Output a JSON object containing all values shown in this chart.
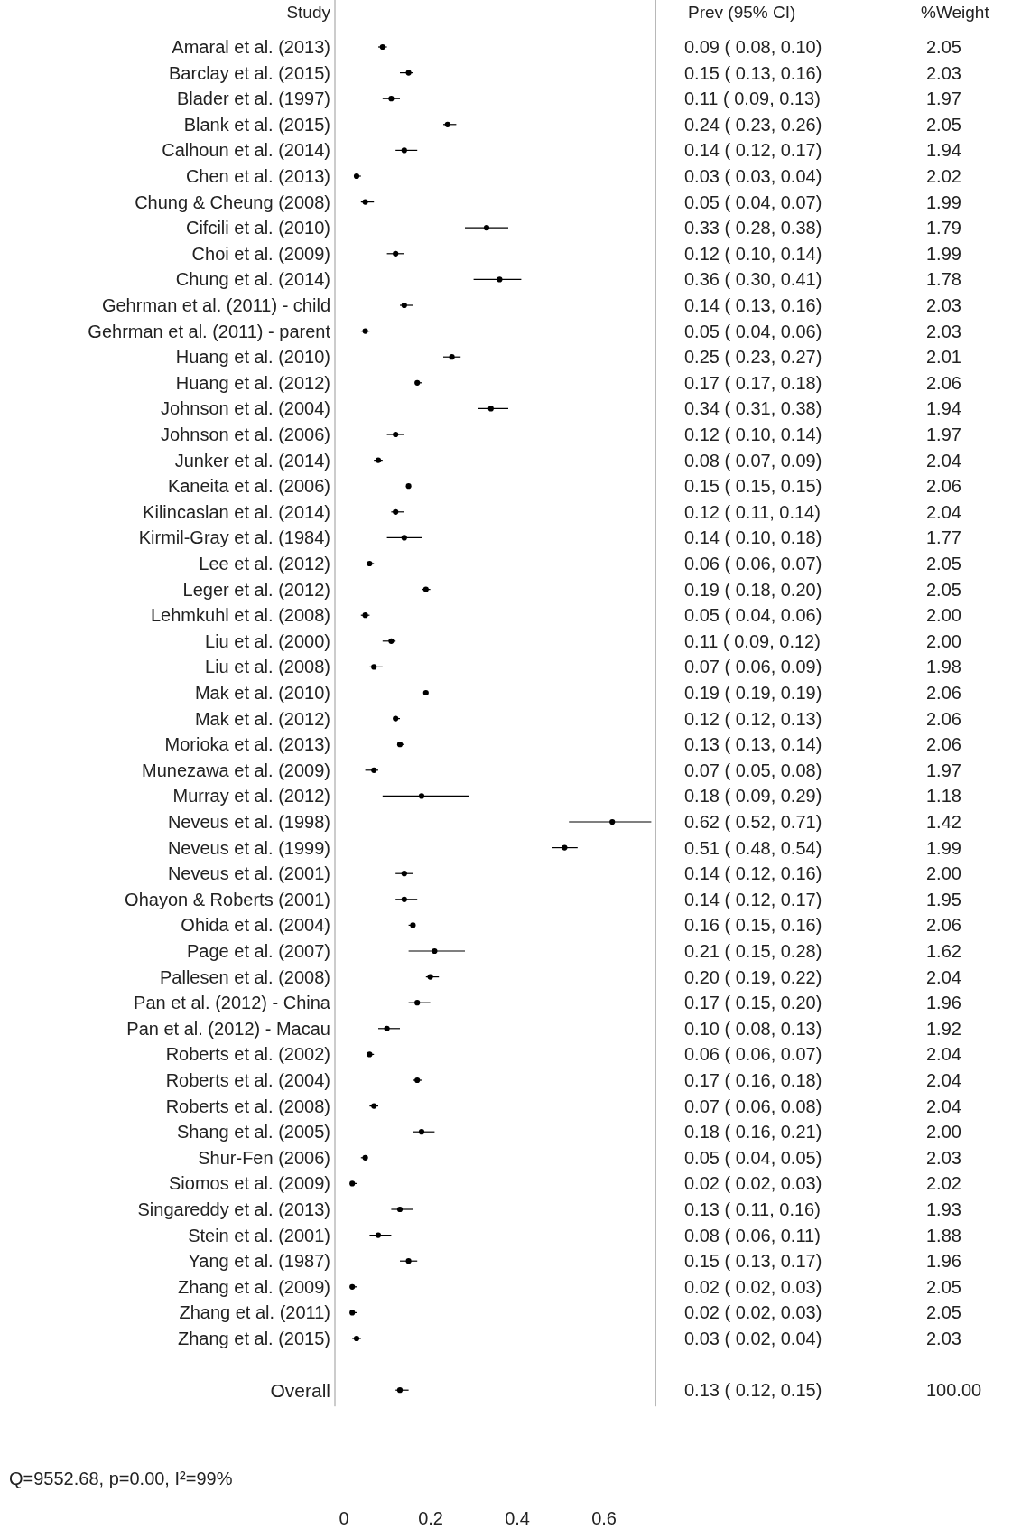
{
  "chart_data": [
    {
      "type": "scatter",
      "orientation": "horizontal",
      "ylabel": "Study",
      "marker": "circle",
      "color": "#000000",
      "categories": [
        "Amaral et al. (2013)",
        "Barclay et al. (2015)",
        "Blader et al. (1997)",
        "Blank et al. (2015)",
        "Calhoun et al. (2014)",
        "Chen et al. (2013)",
        "Chung & Cheung (2008)",
        "Cifcili et al. (2010)",
        "Choi et al. (2009)",
        "Chung et al. (2014)",
        "Gehrman et al. (2011) - child",
        "Gehrman et al. (2011) - parent",
        "Huang et al. (2010)",
        "Huang et al. (2012)",
        "Johnson et al. (2004)",
        "Johnson et al. (2006)",
        "Junker et al. (2014)",
        "Kaneita et al. (2006)",
        "Kilincaslan et al. (2014)",
        "Kirmil-Gray et al. (1984)",
        "Lee et al. (2012)",
        "Leger et al. (2012)",
        "Lehmkuhl et al. (2008)",
        "Liu et al. (2000)",
        "Liu et al. (2008)",
        "Mak et al. (2010)",
        "Mak et al. (2012)",
        "Morioka et al. (2013)",
        "Munezawa et al. (2009)",
        "Murray et al. (2012)",
        "Neveus et al. (1998)",
        "Neveus et al. (1999)",
        "Neveus et al. (2001)",
        "Ohayon & Roberts (2001)",
        "Ohida et al. (2004)",
        "Page et al. (2007)",
        "Pallesen et al. (2008)",
        "Pan et al. (2012) - China",
        "Pan et al. (2012) - Macau",
        "Roberts et al. (2002)",
        "Roberts et al. (2004)",
        "Roberts et al. (2008)",
        "Shang et al. (2005)",
        "Shur-Fen (2006)",
        "Siomos et al. (2009)",
        "Singareddy et al. (2013)",
        "Stein et al. (2001)",
        "Yang et al. (1987)",
        "Zhang et al. (2009)",
        "Zhang et al. (2011)",
        "Zhang et al. (2015)",
        null,
        "Overall"
      ],
      "values": [
        0.09,
        0.15,
        0.11,
        0.24,
        0.14,
        0.03,
        0.05,
        0.33,
        0.12,
        0.36,
        0.14,
        0.05,
        0.25,
        0.17,
        0.34,
        0.12,
        0.08,
        0.15,
        0.12,
        0.14,
        0.06,
        0.19,
        0.05,
        0.11,
        0.07,
        0.19,
        0.12,
        0.13,
        0.07,
        0.18,
        0.62,
        0.51,
        0.14,
        0.14,
        0.16,
        0.21,
        0.2,
        0.17,
        0.1,
        0.06,
        0.17,
        0.07,
        0.18,
        0.05,
        0.02,
        0.13,
        0.08,
        0.15,
        0.02,
        0.02,
        0.03,
        null,
        0.13
      ],
      "errors": [
        [
          0.08,
          0.1
        ],
        [
          0.13,
          0.16
        ],
        [
          0.09,
          0.13
        ],
        [
          0.23,
          0.26
        ],
        [
          0.12,
          0.17
        ],
        [
          0.03,
          0.04
        ],
        [
          0.04,
          0.07
        ],
        [
          0.28,
          0.38
        ],
        [
          0.1,
          0.14
        ],
        [
          0.3,
          0.41
        ],
        [
          0.13,
          0.16
        ],
        [
          0.04,
          0.06
        ],
        [
          0.23,
          0.27
        ],
        [
          0.17,
          0.18
        ],
        [
          0.31,
          0.38
        ],
        [
          0.1,
          0.14
        ],
        [
          0.07,
          0.09
        ],
        [
          0.15,
          0.15
        ],
        [
          0.11,
          0.14
        ],
        [
          0.1,
          0.18
        ],
        [
          0.06,
          0.07
        ],
        [
          0.18,
          0.2
        ],
        [
          0.04,
          0.06
        ],
        [
          0.09,
          0.12
        ],
        [
          0.06,
          0.09
        ],
        [
          0.19,
          0.19
        ],
        [
          0.12,
          0.13
        ],
        [
          0.13,
          0.14
        ],
        [
          0.05,
          0.08
        ],
        [
          0.09,
          0.29
        ],
        [
          0.52,
          0.71
        ],
        [
          0.48,
          0.54
        ],
        [
          0.12,
          0.16
        ],
        [
          0.12,
          0.17
        ],
        [
          0.15,
          0.16
        ],
        [
          0.15,
          0.28
        ],
        [
          0.19,
          0.22
        ],
        [
          0.15,
          0.2
        ],
        [
          0.08,
          0.13
        ],
        [
          0.06,
          0.07
        ],
        [
          0.16,
          0.18
        ],
        [
          0.06,
          0.08
        ],
        [
          0.16,
          0.21
        ],
        [
          0.04,
          0.05
        ],
        [
          0.02,
          0.03
        ],
        [
          0.11,
          0.16
        ],
        [
          0.06,
          0.11
        ],
        [
          0.13,
          0.17
        ],
        [
          0.02,
          0.03
        ],
        [
          0.02,
          0.03
        ],
        [
          0.02,
          0.04
        ],
        null,
        [
          0.12,
          0.15
        ]
      ],
      "value_labels": [
        "0.09 ( 0.08, 0.10)",
        "0.15 ( 0.13, 0.16)",
        "0.11 ( 0.09, 0.13)",
        "0.24 ( 0.23, 0.26)",
        "0.14 ( 0.12, 0.17)",
        "0.03 ( 0.03, 0.04)",
        "0.05 ( 0.04, 0.07)",
        "0.33 ( 0.28, 0.38)",
        "0.12 ( 0.10, 0.14)",
        "0.36 ( 0.30, 0.41)",
        "0.14 ( 0.13, 0.16)",
        "0.05 ( 0.04, 0.06)",
        "0.25 ( 0.23, 0.27)",
        "0.17 ( 0.17, 0.18)",
        "0.34 ( 0.31, 0.38)",
        "0.12 ( 0.10, 0.14)",
        "0.08 ( 0.07, 0.09)",
        "0.15 ( 0.15, 0.15)",
        "0.12 ( 0.11, 0.14)",
        "0.14 ( 0.10, 0.18)",
        "0.06 ( 0.06, 0.07)",
        "0.19 ( 0.18, 0.20)",
        "0.05 ( 0.04, 0.06)",
        "0.11 ( 0.09, 0.12)",
        "0.07 ( 0.06, 0.09)",
        "0.19 ( 0.19, 0.19)",
        "0.12 ( 0.12, 0.13)",
        "0.13 ( 0.13, 0.14)",
        "0.07 ( 0.05, 0.08)",
        "0.18 ( 0.09, 0.29)",
        "0.62 ( 0.52, 0.71)",
        "0.51 ( 0.48, 0.54)",
        "0.14 ( 0.12, 0.16)",
        "0.14 ( 0.12, 0.17)",
        "0.16 ( 0.15, 0.16)",
        "0.21 ( 0.15, 0.28)",
        "0.20 ( 0.19, 0.22)",
        "0.17 ( 0.15, 0.20)",
        "0.10 ( 0.08, 0.13)",
        "0.06 ( 0.06, 0.07)",
        "0.17 ( 0.16, 0.18)",
        "0.07 ( 0.06, 0.08)",
        "0.18 ( 0.16, 0.21)",
        "0.05 ( 0.04, 0.05)",
        "0.02 ( 0.02, 0.03)",
        "0.13 ( 0.11, 0.16)",
        "0.08 ( 0.06, 0.11)",
        "0.15 ( 0.13, 0.17)",
        "0.02 ( 0.02, 0.03)",
        "0.02 ( 0.02, 0.03)",
        "0.03 ( 0.02, 0.04)",
        null,
        "0.13 ( 0.12, 0.15)"
      ],
      "xlim": [
        -0.02,
        0.72
      ],
      "xticks": [
        0,
        0.2,
        0.4,
        0.6
      ],
      "annotations": [
        "Prev (95% CI)",
        "Q=9552.68, p=0.00, I²=99%"
      ]
    },
    {
      "type": "other",
      "title": "%Weight",
      "annotations": [
        "2.05",
        "2.03",
        "1.97",
        "2.05",
        "1.94",
        "2.02",
        "1.99",
        "1.79",
        "1.99",
        "1.78",
        "2.03",
        "2.03",
        "2.01",
        "2.06",
        "1.94",
        "1.97",
        "2.04",
        "2.06",
        "2.04",
        "1.77",
        "2.05",
        "2.05",
        "2.00",
        "2.00",
        "1.98",
        "2.06",
        "2.06",
        "2.06",
        "1.97",
        "1.18",
        "1.42",
        "1.99",
        "2.00",
        "1.95",
        "2.06",
        "1.62",
        "2.04",
        "1.96",
        "1.92",
        "2.04",
        "2.04",
        "2.04",
        "2.00",
        "2.03",
        "2.02",
        "1.93",
        "1.88",
        "1.96",
        "2.05",
        "2.05",
        "2.03",
        "100.00"
      ]
    }
  ]
}
